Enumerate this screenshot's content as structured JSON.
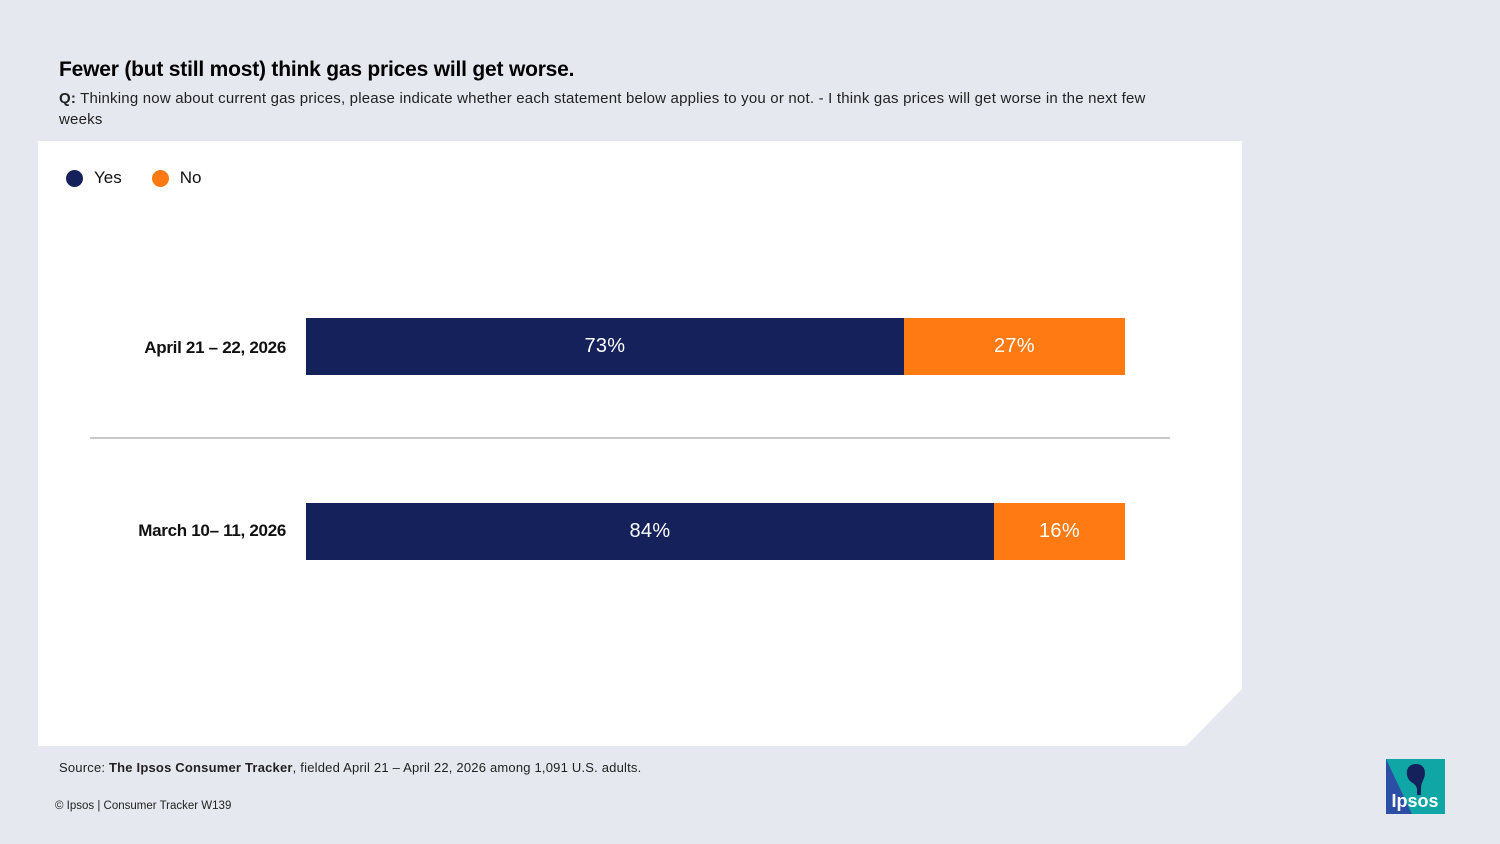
{
  "title": "Fewer (but still most) think gas prices will get worse.",
  "question": {
    "label": "Q:",
    "text": "Thinking now about current gas prices, please indicate whether each statement below applies to you or not. - I think gas prices will get worse in the next few weeks"
  },
  "colors": {
    "yes": "#15215a",
    "no": "#ff7a12",
    "background": "#e5e9ef",
    "card": "#ffffff"
  },
  "chart_data": {
    "type": "bar",
    "orientation": "horizontal",
    "stacked": true,
    "categories": [
      "April 21 – 22, 2026",
      "March 10– 11, 2026"
    ],
    "series": [
      {
        "name": "Yes",
        "values": [
          73,
          84
        ],
        "labels": [
          "73%",
          "84%"
        ]
      },
      {
        "name": "No",
        "values": [
          27,
          16
        ],
        "labels": [
          "27%",
          "16%"
        ]
      }
    ],
    "xlim": [
      0,
      100
    ],
    "legend_position": "top-left",
    "grid": false
  },
  "source": {
    "prefix": "Source:",
    "name": "The Ipsos Consumer Tracker",
    "suffix": ", fielded April 21 – April 22, 2026 among 1,091 U.S. adults."
  },
  "copyright": "© Ipsos | Consumer Tracker W139",
  "logo": {
    "text": "Ipsos",
    "icon": "ipsos-logo-icon",
    "color": "#2a4fa5",
    "accent": "#11a6a6"
  }
}
